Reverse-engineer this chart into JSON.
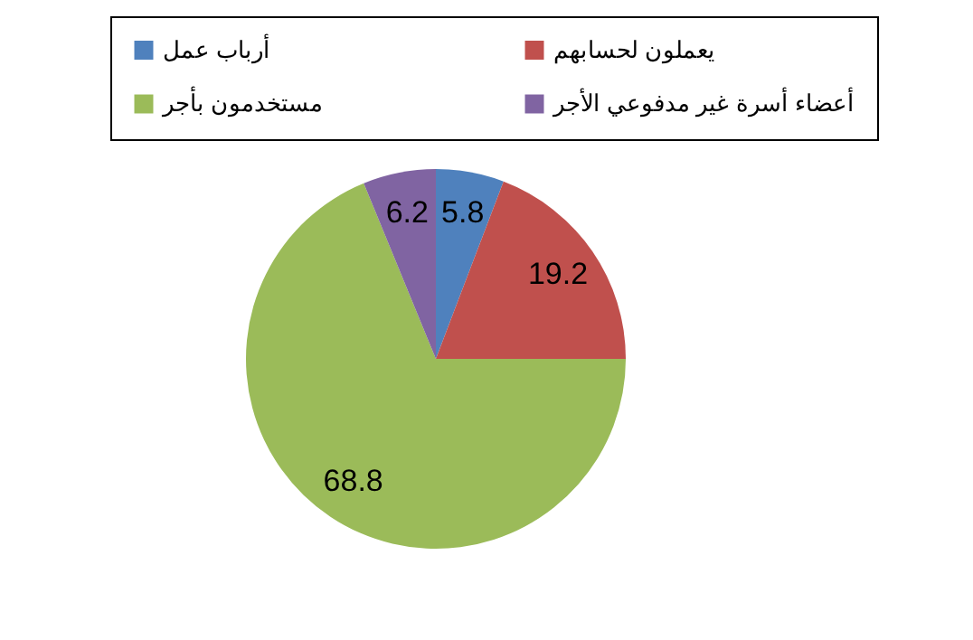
{
  "chart_data": {
    "type": "pie",
    "categories": [
      "أرباب عمل",
      "يعملون لحسابهم",
      "مستخدمون بأجر",
      "أعضاء أسرة غير مدفوعي الأجر"
    ],
    "values": [
      5.8,
      19.2,
      68.8,
      6.2
    ],
    "colors": [
      "#4f81bd",
      "#c0504d",
      "#9bbb59",
      "#8064a2"
    ],
    "data_labels": true,
    "legend": "top"
  }
}
